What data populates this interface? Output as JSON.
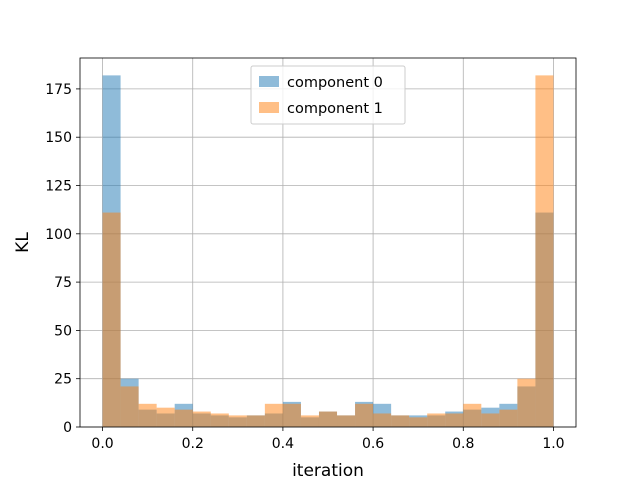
{
  "chart_data": {
    "type": "bar",
    "subtype": "histogram",
    "title": "",
    "xlabel": "iteration",
    "ylabel": "KL",
    "xlim": [
      -0.05,
      1.05
    ],
    "ylim": [
      0,
      191
    ],
    "xticks": [
      0.0,
      0.2,
      0.4,
      0.6,
      0.8,
      1.0
    ],
    "xtick_labels": [
      "0.0",
      "0.2",
      "0.4",
      "0.6",
      "0.8",
      "1.0"
    ],
    "yticks": [
      0,
      25,
      50,
      75,
      100,
      125,
      150,
      175
    ],
    "ytick_labels": [
      "0",
      "25",
      "50",
      "75",
      "100",
      "125",
      "150",
      "175"
    ],
    "grid": true,
    "legend_position": "top-center",
    "bin_edges": [
      0.0,
      0.04,
      0.08,
      0.12,
      0.16,
      0.2,
      0.24,
      0.28,
      0.32,
      0.36,
      0.4,
      0.44,
      0.48,
      0.52,
      0.56,
      0.6,
      0.64,
      0.68,
      0.72,
      0.76,
      0.8,
      0.84,
      0.88,
      0.92,
      0.96,
      1.0
    ],
    "series": [
      {
        "name": "component 0",
        "color": "#1f77b4",
        "values": [
          182,
          25,
          9,
          7,
          12,
          7,
          6,
          5,
          6,
          7,
          13,
          5,
          8,
          6,
          13,
          12,
          6,
          6,
          6,
          8,
          9,
          10,
          12,
          21,
          111
        ]
      },
      {
        "name": "component 1",
        "color": "#ff7f0e",
        "values": [
          111,
          21,
          12,
          10,
          9,
          8,
          7,
          6,
          6,
          12,
          12,
          6,
          8,
          6,
          12,
          7,
          6,
          5,
          7,
          7,
          12,
          7,
          9,
          25,
          182
        ]
      }
    ]
  }
}
